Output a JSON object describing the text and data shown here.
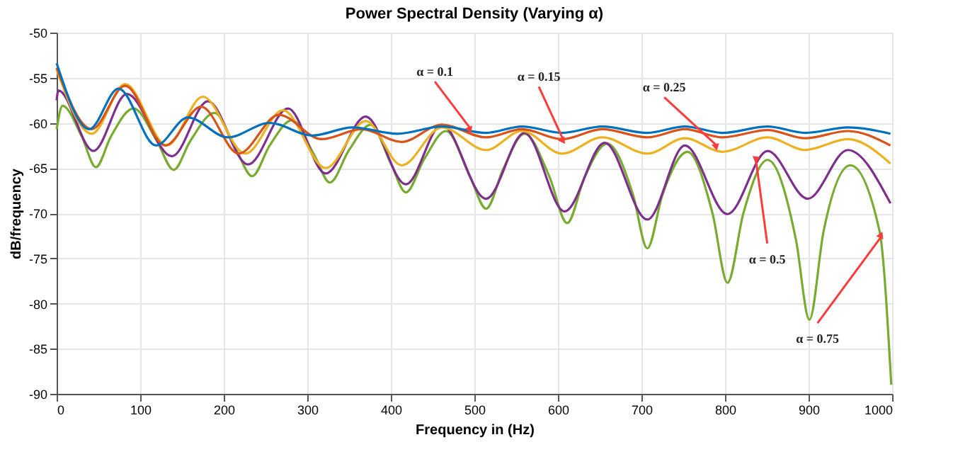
{
  "chart_data": {
    "type": "line",
    "title": "Power Spectral Density (Varying α)",
    "xlabel": "Frequency in (Hz)",
    "ylabel": "dB/frequency",
    "xlim": [
      0,
      1000
    ],
    "ylim": [
      -90,
      -50
    ],
    "xticks": [
      0,
      100,
      200,
      300,
      400,
      500,
      600,
      700,
      800,
      900,
      1000
    ],
    "yticks": [
      -90,
      -85,
      -80,
      -75,
      -70,
      -65,
      -60,
      -55,
      -50
    ],
    "grid": true,
    "marker": "none",
    "line_style": "solid",
    "series": [
      {
        "color": "#77ac30",
        "x": [
          0,
          7,
          30,
          47,
          65,
          92,
          120,
          140,
          160,
          189,
          215,
          234,
          255,
          282,
          308,
          327,
          350,
          376,
          400,
          418,
          440,
          466,
          495,
          514,
          535,
          560,
          590,
          611,
          632,
          659,
          690,
          707,
          725,
          755,
          785,
          803,
          822,
          851,
          885,
          901,
          918,
          950,
          985,
          999
        ],
        "values": [
          -60.7,
          -58.1,
          -61.5,
          -64.9,
          -61.5,
          -58.4,
          -62,
          -65.2,
          -62,
          -58.9,
          -63,
          -65.9,
          -62.5,
          -59.7,
          -63.5,
          -66.6,
          -63,
          -60.2,
          -64.5,
          -67.7,
          -64,
          -60.9,
          -66,
          -69.5,
          -65,
          -61.2,
          -66,
          -71.1,
          -66,
          -62.3,
          -68,
          -73.9,
          -68,
          -63.2,
          -70,
          -77.7,
          -70,
          -64.1,
          -73,
          -81.8,
          -72,
          -64.7,
          -72,
          -89.0
        ]
      },
      {
        "color": "#7e2f8e",
        "x": [
          0,
          2,
          44,
          84,
          138,
          181,
          229,
          277,
          322,
          370,
          418,
          461,
          514,
          560,
          608,
          656,
          707,
          752,
          803,
          851,
          899,
          947,
          998
        ],
        "values": [
          -57.5,
          -56.4,
          -63.1,
          -56.8,
          -63.7,
          -57.6,
          -64.6,
          -58.4,
          -65.6,
          -59.3,
          -66.8,
          -60.2,
          -68.4,
          -61.1,
          -69.8,
          -62.2,
          -70.7,
          -62.5,
          -70.1,
          -63.1,
          -68.4,
          -63.0,
          -68.9
        ]
      },
      {
        "color": "#edb120",
        "x": [
          0,
          42,
          82,
          132,
          175,
          226,
          271,
          322,
          370,
          413,
          461,
          514,
          557,
          605,
          653,
          707,
          752,
          797,
          851,
          896,
          947,
          998
        ],
        "values": [
          -54.1,
          -61.2,
          -55.7,
          -62.5,
          -57.1,
          -63.4,
          -58.6,
          -65.0,
          -59.8,
          -64.7,
          -60.5,
          -63.0,
          -60.9,
          -63.4,
          -61.6,
          -63.4,
          -61.7,
          -63.2,
          -61.6,
          -63.0,
          -61.8,
          -64.5
        ]
      },
      {
        "color": "#d95319",
        "x": [
          0,
          42,
          82,
          130,
          173,
          218,
          266,
          317,
          365,
          413,
          461,
          514,
          557,
          605,
          653,
          707,
          752,
          797,
          851,
          896,
          947,
          998
        ],
        "values": [
          -53.9,
          -60.7,
          -55.9,
          -62.5,
          -58.2,
          -63.4,
          -59.1,
          -61.8,
          -60.7,
          -62.1,
          -60.2,
          -61.6,
          -60.7,
          -61.8,
          -60.7,
          -61.6,
          -60.7,
          -61.6,
          -60.8,
          -61.7,
          -60.9,
          -62.5
        ]
      },
      {
        "color": "#0072bd",
        "x": [
          0,
          39,
          74,
          119,
          157,
          205,
          255,
          306,
          354,
          408,
          461,
          514,
          557,
          605,
          653,
          707,
          752,
          797,
          851,
          896,
          947,
          998
        ],
        "values": [
          -53.4,
          -60.7,
          -56.2,
          -62.5,
          -59.4,
          -61.6,
          -60.0,
          -61.4,
          -60.5,
          -61.2,
          -60.4,
          -61.1,
          -60.4,
          -61.1,
          -60.4,
          -61.1,
          -60.4,
          -61.1,
          -60.4,
          -61.1,
          -60.5,
          -61.2
        ]
      }
    ],
    "annotations": [
      {
        "text": "α = 0.1",
        "x": 495,
        "y": -60.6
      },
      {
        "text": "α = 0.15",
        "x": 606,
        "y": -61.8
      },
      {
        "text": "α = 0.25",
        "x": 790,
        "y": -62.5
      },
      {
        "text": "α = 0.5",
        "x": 837,
        "y": -64.1
      },
      {
        "text": "α = 0.75",
        "x": 987,
        "y": -72.6
      }
    ]
  }
}
